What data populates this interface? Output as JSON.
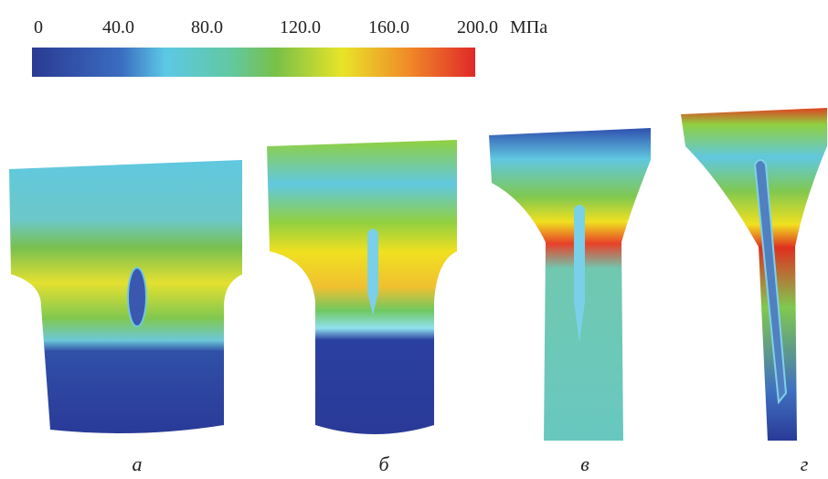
{
  "colorbar": {
    "range": [
      0,
      200
    ],
    "ticks": [
      0,
      {
        "value": 40,
        "label": "40.0"
      },
      {
        "value": 80,
        "label": "80.0"
      },
      {
        "value": 120,
        "label": "120.0"
      },
      {
        "value": 160,
        "label": "160.0"
      },
      {
        "value": 200,
        "label": "200.0"
      }
    ],
    "unit": "МПа"
  },
  "panels": [
    {
      "label": "а"
    },
    {
      "label": "б"
    },
    {
      "label": "в"
    },
    {
      "label": "г"
    }
  ]
}
